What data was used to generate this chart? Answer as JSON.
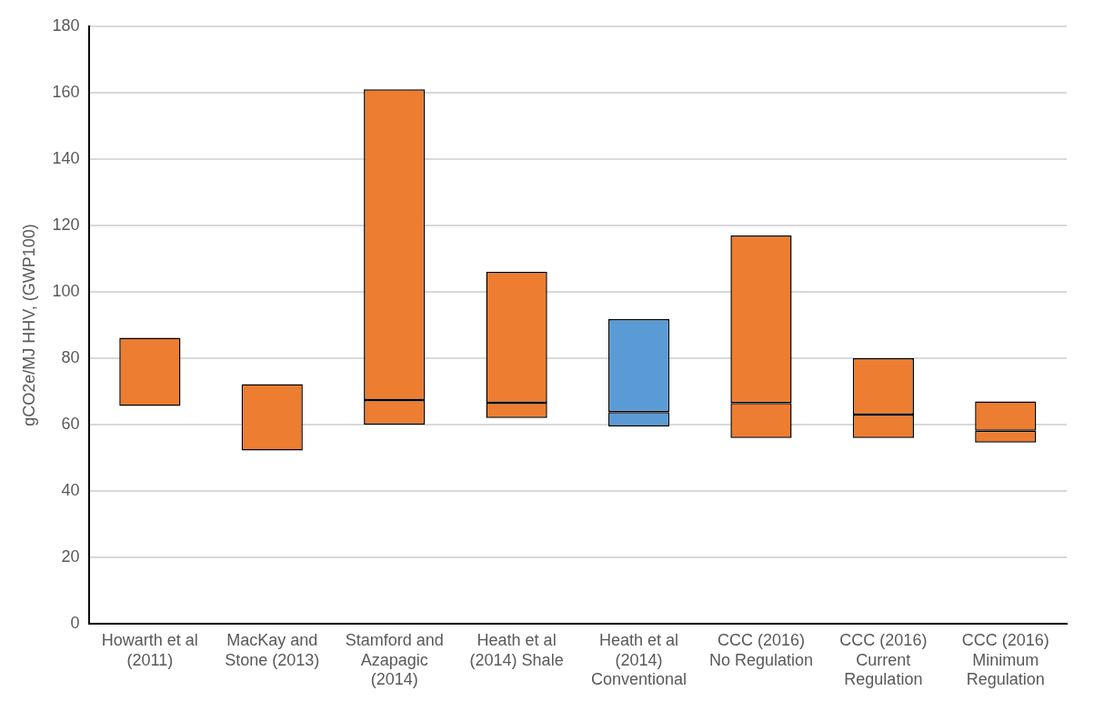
{
  "chart_data": {
    "type": "bar",
    "ylabel": "gCO2e/MJ HHV, (GWP100)",
    "categories": [
      "Howarth et al (2011)",
      "MacKay and Stone (2013)",
      "Stamford and Azapagic (2014)",
      "Heath et al (2014) Shale",
      "Heath et al (2014) Conventional",
      "CCC (2016) No Regulation",
      "CCC (2016) Current Regulation",
      "CCC (2016) Minimum Regulation"
    ],
    "series": [
      {
        "colors": [
          "#ed7d31",
          "#ed7d31",
          "#ed7d31",
          "#ed7d31",
          "#5b9bd5",
          "#ed7d31",
          "#ed7d31",
          "#ed7d31"
        ],
        "base": [
          65.6,
          52.2,
          60,
          62,
          59.5,
          56,
          56,
          54.6
        ],
        "values": [
          20.6,
          20,
          7.4,
          4.6,
          4.3,
          10.5,
          7,
          3.6
        ]
      },
      {
        "colors": [
          "#ed7d31",
          "#ed7d31",
          "#ed7d31",
          "#ed7d31",
          "#5b9bd5",
          "#ed7d31",
          "#ed7d31",
          "#ed7d31"
        ],
        "base": [
          null,
          null,
          67.4,
          66.6,
          63.8,
          66.5,
          63,
          58.2
        ],
        "values": [
          null,
          null,
          93.6,
          39.4,
          28,
          50.5,
          17,
          8.8
        ]
      }
    ],
    "ylim": [
      0,
      180
    ],
    "yticks": [
      0,
      20,
      40,
      60,
      80,
      100,
      120,
      140,
      160,
      180
    ],
    "grid": "y",
    "legend": false
  }
}
